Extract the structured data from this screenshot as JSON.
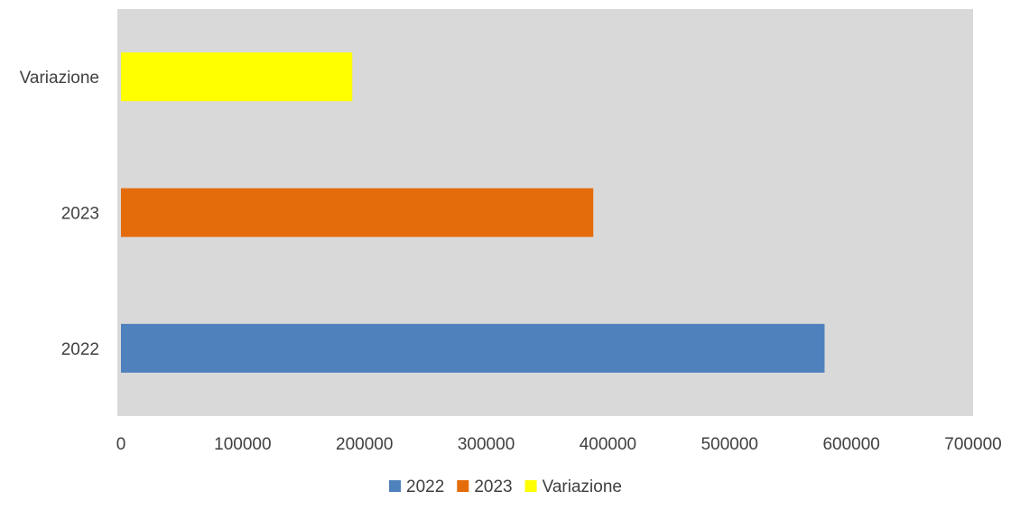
{
  "chart_data": {
    "type": "bar",
    "orientation": "horizontal",
    "categories": [
      "2022",
      "2023",
      "Variazione"
    ],
    "values": [
      578000,
      388000,
      190000
    ],
    "colors": [
      "#4f81bd",
      "#e46c0a",
      "#ffff00"
    ],
    "xlim": [
      0,
      700000
    ],
    "x_ticks": [
      "0",
      "100000",
      "200000",
      "300000",
      "400000",
      "500000",
      "600000",
      "700000"
    ],
    "x_tick_values": [
      0,
      100000,
      200000,
      300000,
      400000,
      500000,
      600000,
      700000
    ],
    "plot_background": "#d9d9d9",
    "grid": false,
    "legend": {
      "placement": "bottom",
      "entries": [
        "2022",
        "2023",
        "Variazione"
      ]
    },
    "title": "",
    "xlabel": "",
    "ylabel": ""
  }
}
